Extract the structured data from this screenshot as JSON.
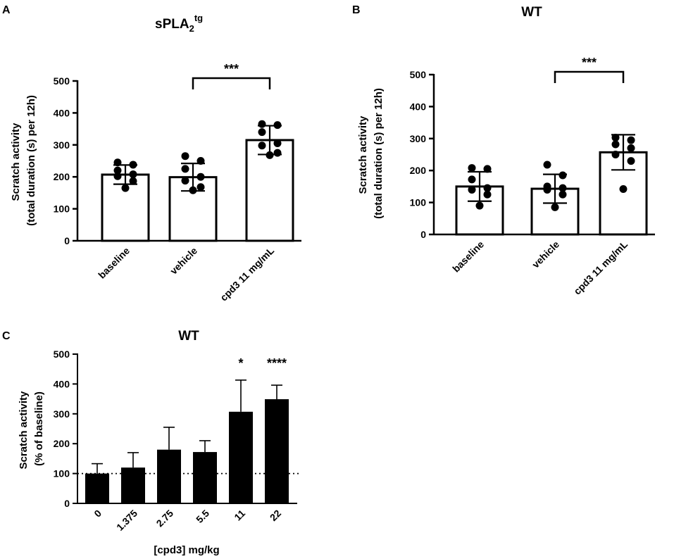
{
  "chart_data": [
    {
      "panel": "A",
      "type": "bar",
      "title": "sPLA",
      "title_sub": "2",
      "title_sup": "tg",
      "ylabel_lines": [
        "Scratch activity",
        "(total duration (s) per 12h)"
      ],
      "xlabel": "",
      "ylim": [
        0,
        500
      ],
      "yticks": [
        0,
        100,
        200,
        300,
        400,
        500
      ],
      "categories": [
        "baseline",
        "vehicle",
        "cpd3 11 mg/mL"
      ],
      "values": [
        207,
        199,
        315
      ],
      "error": [
        30,
        43,
        45
      ],
      "points": [
        [
          245,
          238,
          220,
          208,
          202,
          187,
          165
        ],
        [
          265,
          250,
          225,
          200,
          188,
          168,
          158
        ],
        [
          365,
          362,
          340,
          305,
          298,
          275,
          268
        ]
      ],
      "significance": [
        {
          "from": 1,
          "to": 2,
          "label": "***"
        }
      ]
    },
    {
      "panel": "B",
      "type": "bar",
      "title": "WT",
      "ylabel_lines": [
        "Scratch activity",
        "(total duration (s) per 12h)"
      ],
      "xlabel": "",
      "ylim": [
        0,
        500
      ],
      "yticks": [
        0,
        100,
        200,
        300,
        400,
        500
      ],
      "categories": [
        "baseline",
        "vehicle",
        "cpd3 11 mg/mL"
      ],
      "values": [
        150,
        143,
        257
      ],
      "error": [
        46,
        45,
        55
      ],
      "points": [
        [
          208,
          205,
          172,
          145,
          140,
          125,
          90
        ],
        [
          218,
          185,
          150,
          145,
          140,
          125,
          85
        ],
        [
          303,
          295,
          282,
          270,
          250,
          230,
          142
        ]
      ],
      "significance": [
        {
          "from": 1,
          "to": 2,
          "label": "***"
        }
      ]
    },
    {
      "panel": "C",
      "type": "bar",
      "title": "WT",
      "ylabel_lines": [
        "Scratch activity",
        "(% of baseline)"
      ],
      "xlabel": "[cpd3] mg/kg",
      "ylim": [
        0,
        500
      ],
      "yticks": [
        0,
        100,
        200,
        300,
        400,
        500
      ],
      "categories": [
        "0",
        "1.375",
        "2.75",
        "5.5",
        "11",
        "22"
      ],
      "values": [
        100,
        120,
        180,
        172,
        307,
        349
      ],
      "error": [
        33,
        50,
        75,
        38,
        106,
        47
      ],
      "reference_line": 100,
      "significance_labels": [
        "",
        "",
        "",
        "",
        "*",
        "****"
      ]
    }
  ]
}
